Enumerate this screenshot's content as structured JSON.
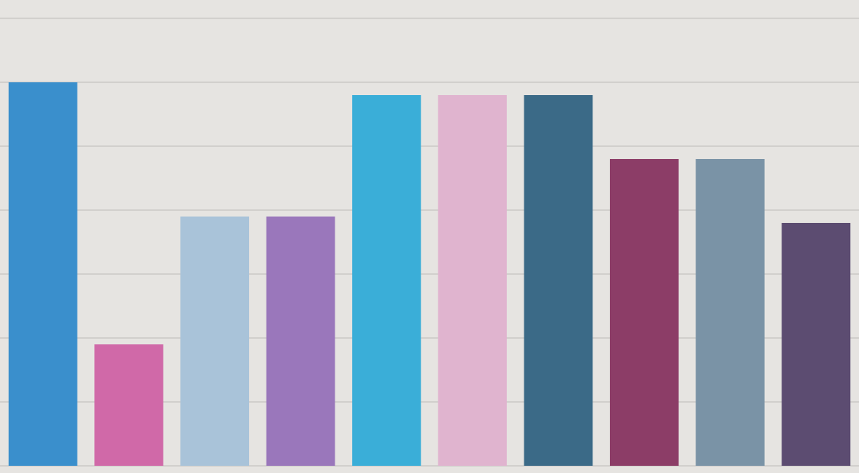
{
  "chart_data": {
    "type": "bar",
    "categories": [
      null,
      null,
      null,
      null,
      null,
      null,
      null,
      null,
      null,
      null
    ],
    "values": [
      6.0,
      1.9,
      3.9,
      3.9,
      5.8,
      5.8,
      5.8,
      4.8,
      4.8,
      3.8
    ],
    "colors": [
      "#3a8fcc",
      "#d069a8",
      "#a9c3d9",
      "#9a77bb",
      "#3aaed8",
      "#e0b4cf",
      "#3b6a87",
      "#8c3d67",
      "#7a93a6",
      "#5c4c71"
    ],
    "ylim": [
      0,
      7
    ],
    "yticks": [
      0,
      1,
      2,
      3,
      4,
      5,
      6,
      7
    ],
    "grid": true,
    "tick_labels": false
  }
}
